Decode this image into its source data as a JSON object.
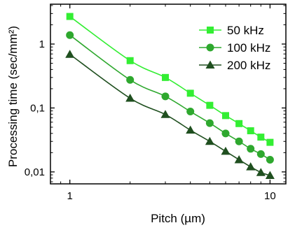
{
  "chart_data": {
    "type": "line",
    "xlabel": "Pitch (µm)",
    "ylabel": "Processing time (sec/mm²)",
    "xscale": "log",
    "yscale": "log",
    "xlim": [
      0.8,
      12
    ],
    "ylim": [
      0.0065,
      4.2
    ],
    "x_ticks": [
      1,
      10
    ],
    "x_tick_labels": [
      "1",
      "10"
    ],
    "y_ticks": [
      0.01,
      0.1,
      1
    ],
    "y_tick_labels": [
      "0,01",
      "0,1",
      "1"
    ],
    "grid": false,
    "legend_position": "top-right",
    "x": [
      1,
      2,
      3,
      4,
      5,
      6,
      7,
      8,
      9,
      10
    ],
    "series": [
      {
        "name": "50 kHz",
        "marker": "square",
        "color": "#33ee33",
        "values": [
          2.7,
          0.55,
          0.3,
          0.17,
          0.11,
          0.076,
          0.057,
          0.044,
          0.035,
          0.029
        ]
      },
      {
        "name": "100 kHz",
        "marker": "circle",
        "color": "#2ea82e",
        "values": [
          1.38,
          0.275,
          0.152,
          0.088,
          0.058,
          0.04,
          0.03,
          0.023,
          0.019,
          0.0155
        ]
      },
      {
        "name": "200 kHz",
        "marker": "triangle",
        "color": "#1f4f1f",
        "values": [
          0.69,
          0.142,
          0.079,
          0.045,
          0.03,
          0.021,
          0.0155,
          0.012,
          0.0098,
          0.0088
        ]
      }
    ]
  }
}
